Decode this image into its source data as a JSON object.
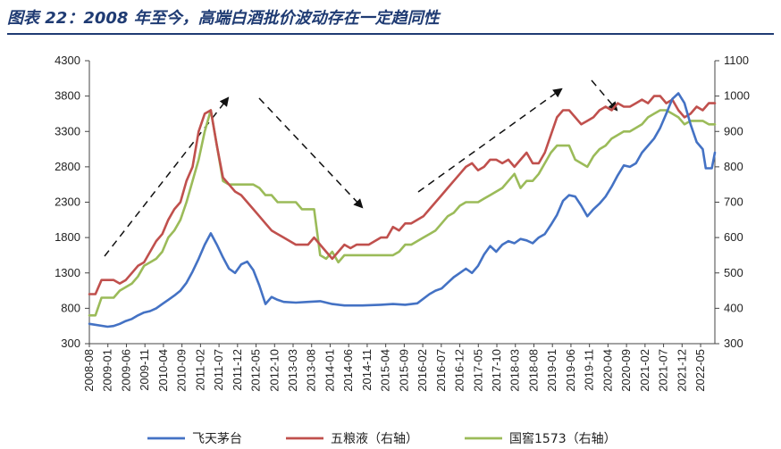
{
  "title": "图表 22：2008 年至今，高端白酒批价波动存在一定趋同性",
  "chart_data": {
    "type": "line",
    "title": "图表 22：2008 年至今，高端白酒批价波动存在一定趋同性",
    "x_tick_labels": [
      "2008-08",
      "2009-01",
      "2009-06",
      "2009-11",
      "2010-04",
      "2010-09",
      "2011-02",
      "2011-07",
      "2011-12",
      "2012-05",
      "2012-10",
      "2013-03",
      "2013-08",
      "2014-01",
      "2014-06",
      "2014-11",
      "2015-04",
      "2015-09",
      "2016-02",
      "2016-07",
      "2016-12",
      "2017-05",
      "2017-10",
      "2018-03",
      "2018-08",
      "2019-01",
      "2019-06",
      "2019-11",
      "2020-04",
      "2020-09",
      "2021-02",
      "2021-07",
      "2021-12",
      "2022-05"
    ],
    "y_left": {
      "min": 300,
      "max": 4300,
      "ticks": [
        300,
        800,
        1300,
        1800,
        2300,
        2800,
        3300,
        3800,
        4300
      ]
    },
    "y_right": {
      "min": 300,
      "max": 1100,
      "ticks": [
        300,
        400,
        500,
        600,
        700,
        800,
        900,
        1000,
        1100
      ]
    },
    "grid": false,
    "legend_position": "bottom",
    "series": [
      {
        "name": "飞天茅台",
        "axis": "left",
        "color": "#4472C4",
        "points": [
          [
            0,
            580
          ],
          [
            6,
            540
          ],
          [
            8,
            550
          ],
          [
            10,
            580
          ],
          [
            12,
            620
          ],
          [
            14,
            650
          ],
          [
            16,
            700
          ],
          [
            18,
            740
          ],
          [
            20,
            760
          ],
          [
            22,
            800
          ],
          [
            24,
            860
          ],
          [
            26,
            920
          ],
          [
            28,
            980
          ],
          [
            30,
            1050
          ],
          [
            32,
            1160
          ],
          [
            34,
            1320
          ],
          [
            36,
            1500
          ],
          [
            38,
            1700
          ],
          [
            40,
            1860
          ],
          [
            42,
            1700
          ],
          [
            44,
            1520
          ],
          [
            46,
            1360
          ],
          [
            48,
            1300
          ],
          [
            50,
            1420
          ],
          [
            52,
            1460
          ],
          [
            54,
            1340
          ],
          [
            56,
            1120
          ],
          [
            58,
            860
          ],
          [
            60,
            960
          ],
          [
            62,
            920
          ],
          [
            64,
            890
          ],
          [
            68,
            880
          ],
          [
            72,
            890
          ],
          [
            76,
            900
          ],
          [
            80,
            860
          ],
          [
            84,
            840
          ],
          [
            90,
            840
          ],
          [
            96,
            850
          ],
          [
            100,
            860
          ],
          [
            104,
            850
          ],
          [
            108,
            870
          ],
          [
            112,
            1000
          ],
          [
            114,
            1050
          ],
          [
            116,
            1080
          ],
          [
            118,
            1160
          ],
          [
            120,
            1240
          ],
          [
            122,
            1300
          ],
          [
            124,
            1360
          ],
          [
            126,
            1300
          ],
          [
            128,
            1400
          ],
          [
            130,
            1560
          ],
          [
            132,
            1680
          ],
          [
            134,
            1600
          ],
          [
            136,
            1700
          ],
          [
            138,
            1750
          ],
          [
            140,
            1720
          ],
          [
            142,
            1780
          ],
          [
            144,
            1760
          ],
          [
            146,
            1720
          ],
          [
            148,
            1800
          ],
          [
            150,
            1850
          ],
          [
            152,
            1980
          ],
          [
            154,
            2120
          ],
          [
            156,
            2320
          ],
          [
            158,
            2400
          ],
          [
            160,
            2380
          ],
          [
            162,
            2250
          ],
          [
            164,
            2100
          ],
          [
            166,
            2200
          ],
          [
            168,
            2280
          ],
          [
            170,
            2380
          ],
          [
            172,
            2520
          ],
          [
            174,
            2680
          ],
          [
            176,
            2820
          ],
          [
            178,
            2800
          ],
          [
            180,
            2850
          ],
          [
            182,
            3000
          ],
          [
            184,
            3100
          ],
          [
            186,
            3200
          ],
          [
            188,
            3350
          ],
          [
            190,
            3550
          ],
          [
            192,
            3760
          ],
          [
            194,
            3840
          ],
          [
            196,
            3700
          ],
          [
            198,
            3400
          ],
          [
            200,
            3150
          ],
          [
            202,
            3050
          ],
          [
            203,
            2780
          ],
          [
            205,
            2780
          ],
          [
            206,
            3000
          ]
        ]
      },
      {
        "name": "五粮液（右轴）",
        "axis": "right",
        "color": "#C0504D",
        "points": [
          [
            0,
            440
          ],
          [
            2,
            440
          ],
          [
            4,
            480
          ],
          [
            8,
            480
          ],
          [
            10,
            470
          ],
          [
            12,
            480
          ],
          [
            14,
            500
          ],
          [
            16,
            520
          ],
          [
            18,
            530
          ],
          [
            20,
            560
          ],
          [
            22,
            590
          ],
          [
            24,
            610
          ],
          [
            26,
            650
          ],
          [
            28,
            680
          ],
          [
            30,
            700
          ],
          [
            32,
            760
          ],
          [
            34,
            800
          ],
          [
            36,
            900
          ],
          [
            38,
            950
          ],
          [
            40,
            960
          ],
          [
            42,
            860
          ],
          [
            44,
            770
          ],
          [
            46,
            750
          ],
          [
            48,
            730
          ],
          [
            50,
            720
          ],
          [
            52,
            700
          ],
          [
            54,
            680
          ],
          [
            56,
            660
          ],
          [
            58,
            640
          ],
          [
            60,
            620
          ],
          [
            62,
            610
          ],
          [
            64,
            600
          ],
          [
            66,
            590
          ],
          [
            68,
            580
          ],
          [
            70,
            580
          ],
          [
            72,
            580
          ],
          [
            74,
            600
          ],
          [
            76,
            580
          ],
          [
            78,
            560
          ],
          [
            80,
            540
          ],
          [
            82,
            560
          ],
          [
            84,
            580
          ],
          [
            86,
            570
          ],
          [
            88,
            580
          ],
          [
            92,
            580
          ],
          [
            96,
            600
          ],
          [
            98,
            600
          ],
          [
            100,
            630
          ],
          [
            102,
            620
          ],
          [
            104,
            640
          ],
          [
            106,
            640
          ],
          [
            108,
            650
          ],
          [
            110,
            660
          ],
          [
            112,
            680
          ],
          [
            114,
            700
          ],
          [
            116,
            720
          ],
          [
            118,
            740
          ],
          [
            120,
            760
          ],
          [
            122,
            780
          ],
          [
            124,
            800
          ],
          [
            126,
            810
          ],
          [
            128,
            790
          ],
          [
            130,
            800
          ],
          [
            132,
            820
          ],
          [
            134,
            820
          ],
          [
            136,
            810
          ],
          [
            138,
            820
          ],
          [
            140,
            800
          ],
          [
            142,
            820
          ],
          [
            144,
            840
          ],
          [
            146,
            810
          ],
          [
            148,
            810
          ],
          [
            150,
            840
          ],
          [
            152,
            890
          ],
          [
            154,
            940
          ],
          [
            156,
            960
          ],
          [
            158,
            960
          ],
          [
            160,
            940
          ],
          [
            162,
            920
          ],
          [
            164,
            930
          ],
          [
            166,
            940
          ],
          [
            168,
            960
          ],
          [
            170,
            970
          ],
          [
            172,
            960
          ],
          [
            174,
            980
          ],
          [
            176,
            970
          ],
          [
            178,
            970
          ],
          [
            180,
            980
          ],
          [
            182,
            990
          ],
          [
            184,
            980
          ],
          [
            186,
            1000
          ],
          [
            188,
            1000
          ],
          [
            190,
            980
          ],
          [
            192,
            990
          ],
          [
            194,
            960
          ],
          [
            196,
            940
          ],
          [
            198,
            950
          ],
          [
            200,
            970
          ],
          [
            202,
            960
          ],
          [
            204,
            980
          ],
          [
            206,
            980
          ]
        ]
      },
      {
        "name": "国窖1573（右轴）",
        "axis": "right",
        "color": "#9BBB59",
        "points": [
          [
            0,
            380
          ],
          [
            2,
            380
          ],
          [
            4,
            430
          ],
          [
            8,
            430
          ],
          [
            10,
            450
          ],
          [
            12,
            460
          ],
          [
            14,
            470
          ],
          [
            16,
            490
          ],
          [
            18,
            520
          ],
          [
            20,
            530
          ],
          [
            22,
            540
          ],
          [
            24,
            560
          ],
          [
            26,
            600
          ],
          [
            28,
            620
          ],
          [
            30,
            650
          ],
          [
            32,
            700
          ],
          [
            34,
            760
          ],
          [
            36,
            820
          ],
          [
            38,
            900
          ],
          [
            40,
            960
          ],
          [
            42,
            860
          ],
          [
            44,
            760
          ],
          [
            46,
            750
          ],
          [
            48,
            750
          ],
          [
            50,
            750
          ],
          [
            52,
            750
          ],
          [
            54,
            750
          ],
          [
            56,
            740
          ],
          [
            58,
            720
          ],
          [
            60,
            720
          ],
          [
            62,
            700
          ],
          [
            64,
            700
          ],
          [
            66,
            700
          ],
          [
            68,
            700
          ],
          [
            70,
            680
          ],
          [
            72,
            680
          ],
          [
            74,
            680
          ],
          [
            76,
            550
          ],
          [
            78,
            540
          ],
          [
            80,
            560
          ],
          [
            82,
            530
          ],
          [
            84,
            550
          ],
          [
            90,
            550
          ],
          [
            96,
            550
          ],
          [
            100,
            550
          ],
          [
            102,
            560
          ],
          [
            104,
            580
          ],
          [
            106,
            580
          ],
          [
            108,
            590
          ],
          [
            110,
            600
          ],
          [
            112,
            610
          ],
          [
            114,
            620
          ],
          [
            116,
            640
          ],
          [
            118,
            660
          ],
          [
            120,
            670
          ],
          [
            122,
            690
          ],
          [
            124,
            700
          ],
          [
            126,
            700
          ],
          [
            128,
            700
          ],
          [
            130,
            710
          ],
          [
            132,
            720
          ],
          [
            134,
            730
          ],
          [
            136,
            740
          ],
          [
            138,
            760
          ],
          [
            140,
            780
          ],
          [
            142,
            740
          ],
          [
            144,
            760
          ],
          [
            146,
            760
          ],
          [
            148,
            780
          ],
          [
            150,
            810
          ],
          [
            152,
            840
          ],
          [
            154,
            860
          ],
          [
            156,
            860
          ],
          [
            158,
            860
          ],
          [
            160,
            820
          ],
          [
            162,
            810
          ],
          [
            164,
            800
          ],
          [
            166,
            830
          ],
          [
            168,
            850
          ],
          [
            170,
            860
          ],
          [
            172,
            880
          ],
          [
            174,
            890
          ],
          [
            176,
            900
          ],
          [
            178,
            900
          ],
          [
            180,
            910
          ],
          [
            182,
            920
          ],
          [
            184,
            940
          ],
          [
            186,
            950
          ],
          [
            188,
            960
          ],
          [
            190,
            960
          ],
          [
            192,
            950
          ],
          [
            194,
            940
          ],
          [
            196,
            920
          ],
          [
            198,
            930
          ],
          [
            200,
            930
          ],
          [
            202,
            930
          ],
          [
            204,
            920
          ],
          [
            206,
            920
          ]
        ]
      }
    ]
  }
}
